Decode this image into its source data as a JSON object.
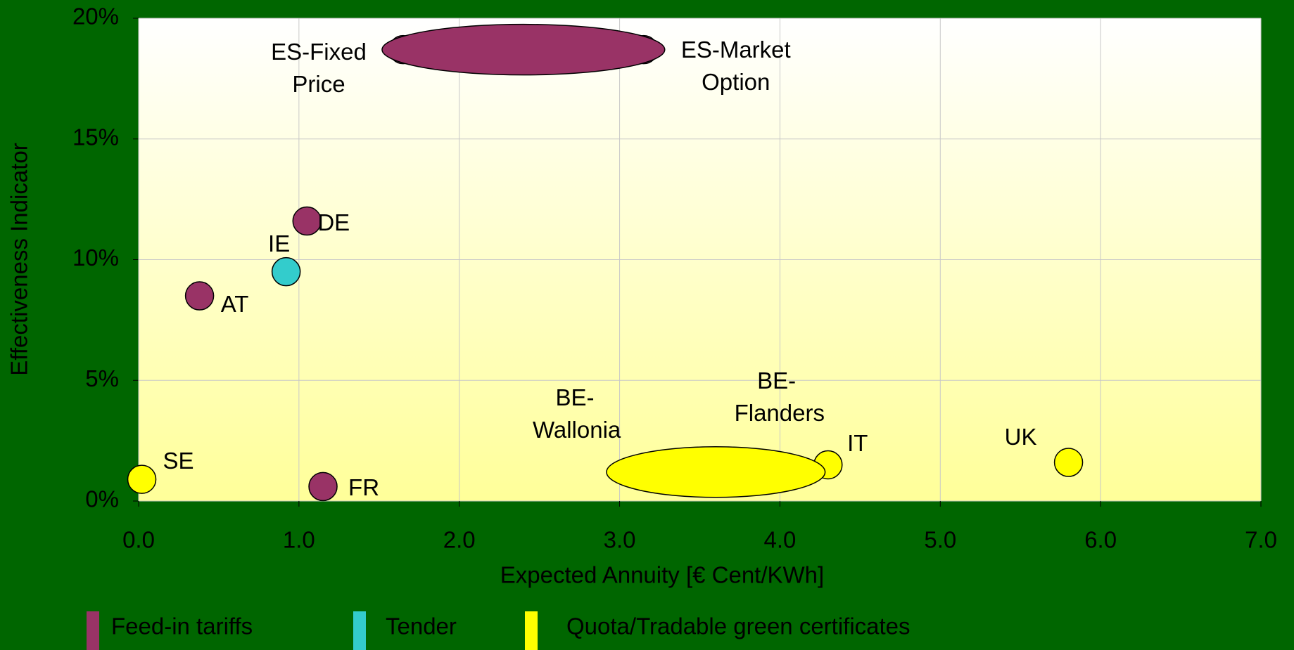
{
  "chart_data": {
    "type": "scatter",
    "x_label": "Expected Annuity [€ Cent/KWh]",
    "y_label": "Effectiveness Indicator",
    "xlim": [
      0,
      7
    ],
    "ylim": [
      0,
      20
    ],
    "xticks": [
      {
        "value": 0,
        "label": "0.0"
      },
      {
        "value": 1,
        "label": "1.0"
      },
      {
        "value": 2,
        "label": "2.0"
      },
      {
        "value": 3,
        "label": "3.0"
      },
      {
        "value": 4,
        "label": "4.0"
      },
      {
        "value": 5,
        "label": "5.0"
      },
      {
        "value": 6,
        "label": "6.0"
      },
      {
        "value": 7,
        "label": "7.0"
      }
    ],
    "yticks": [
      {
        "value": 0,
        "label": "0%"
      },
      {
        "value": 5,
        "label": "5%"
      },
      {
        "value": 10,
        "label": "10%"
      },
      {
        "value": 15,
        "label": "15%"
      },
      {
        "value": 20,
        "label": "20%"
      }
    ],
    "grid": true,
    "series": [
      {
        "name": "Feed-in tariffs",
        "color": "#993366",
        "labels": [
          "DE",
          "AT",
          "FR",
          "ES-Fixed Price",
          "ES-Market Option"
        ],
        "x": [
          1.05,
          0.38,
          1.15,
          1.65,
          3.15
        ],
        "values": [
          11.6,
          8.5,
          0.6,
          18.7,
          18.7
        ]
      },
      {
        "name": "Tender",
        "color": "#33cccc",
        "labels": [
          "IE"
        ],
        "x": [
          0.92
        ],
        "values": [
          9.5
        ]
      },
      {
        "name": "Quota/Tradable green certificates",
        "color": "#ffff00",
        "labels": [
          "SE",
          "IT",
          "UK",
          "BE-Wallonia",
          "BE-Flanders"
        ],
        "x": [
          0.02,
          4.3,
          5.8,
          3.05,
          4.15
        ],
        "values": [
          0.9,
          1.5,
          1.6,
          1.2,
          1.2
        ]
      }
    ]
  }
}
